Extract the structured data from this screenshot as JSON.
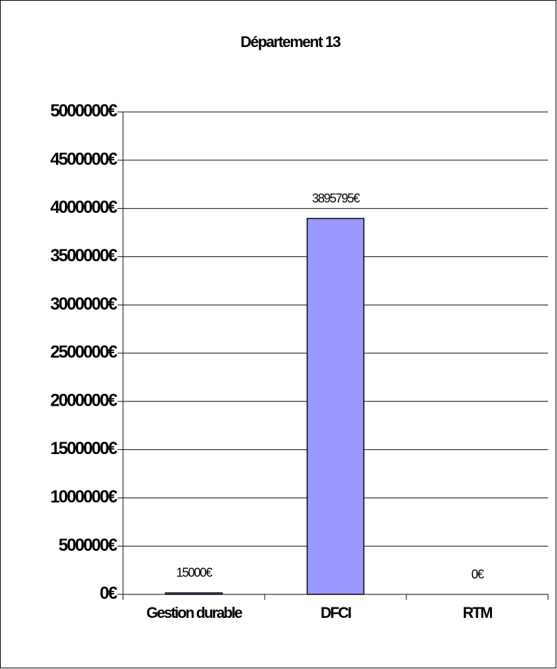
{
  "chart_data": {
    "type": "bar",
    "title": "Département 13",
    "categories": [
      "Gestion durable",
      "DFCI",
      "RTM"
    ],
    "values": [
      15000,
      3895795,
      0
    ],
    "value_labels": [
      "15000€",
      "3895795€",
      "0€"
    ],
    "color": "#9999ff",
    "ylim": [
      0,
      5000000
    ],
    "yticks": [
      {
        "value": 0,
        "label": "0€"
      },
      {
        "value": 500000,
        "label": "500000€"
      },
      {
        "value": 1000000,
        "label": "1000000€"
      },
      {
        "value": 1500000,
        "label": "1500000€"
      },
      {
        "value": 2000000,
        "label": "2000000€"
      },
      {
        "value": 2500000,
        "label": "2500000€"
      },
      {
        "value": 3000000,
        "label": "3000000€"
      },
      {
        "value": 3500000,
        "label": "3500000€"
      },
      {
        "value": 4000000,
        "label": "4000000€"
      },
      {
        "value": 4500000,
        "label": "4500000€"
      },
      {
        "value": 5000000,
        "label": "5000000€"
      }
    ],
    "grid": true
  }
}
